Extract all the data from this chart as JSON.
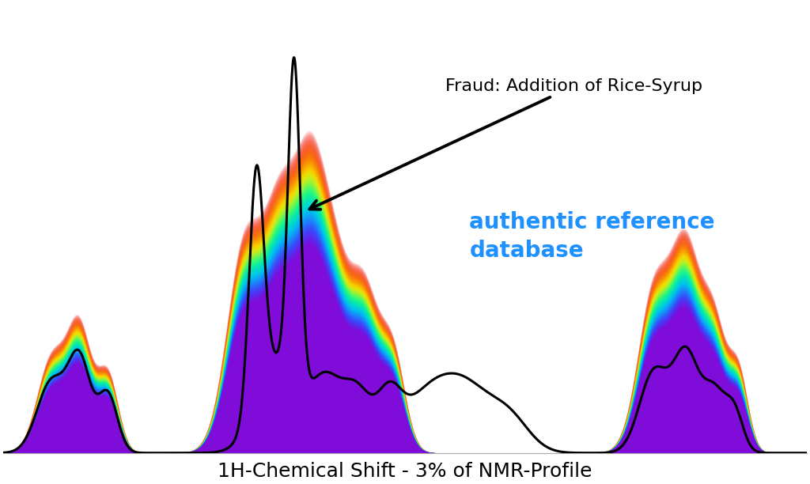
{
  "title": "",
  "xlabel": "1H-Chemical Shift - 3% of NMR-Profile",
  "xlabel_fontsize": 18,
  "annotation_text": "Fraud: Addition of Rice-Syrup",
  "annotation_fontsize": 16,
  "legend_text": "authentic reference\ndatabase",
  "legend_color": "#1E90FF",
  "legend_fontsize": 20,
  "background_color": "#ffffff",
  "line_color": "#000000",
  "line_width": 2.2,
  "figsize": [
    10.24,
    6.12
  ],
  "dpi": 100,
  "xlim": [
    0,
    100
  ],
  "ylim": [
    0,
    1.08
  ]
}
